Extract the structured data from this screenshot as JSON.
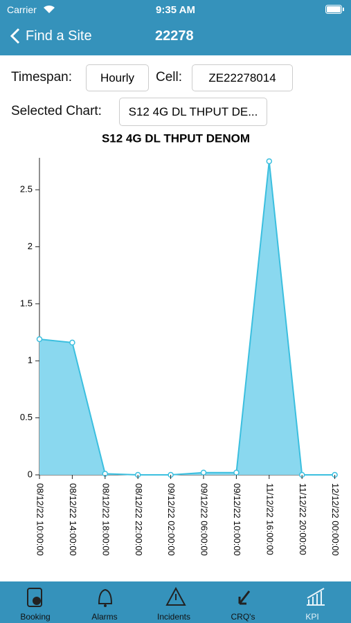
{
  "status": {
    "carrier": "Carrier",
    "time": "9:35 AM"
  },
  "header": {
    "back": "Find a Site",
    "title": "22278"
  },
  "controls": {
    "timespan_label": "Timespan:",
    "timespan": "Hourly",
    "cell_label": "Cell:",
    "cell": "ZE22278014",
    "chart_label": "Selected Chart:",
    "chart": "S12 4G DL THPUT DE..."
  },
  "chart_data": {
    "type": "area",
    "title": "S12 4G DL THPUT DENOM",
    "categories": [
      "08/12/22 10:00:00",
      "08/12/22 14:00:00",
      "08/12/22 18:00:00",
      "08/12/22 22:00:00",
      "09/12/22 02:00:00",
      "09/12/22 06:00:00",
      "09/12/22 10:00:00",
      "11/12/22 16:00:00",
      "11/12/22 20:00:00",
      "12/12/22 00:00:00"
    ],
    "values": [
      1.19,
      1.16,
      0.01,
      0,
      0,
      0.02,
      0.02,
      2.75,
      0,
      0
    ],
    "color": "#3bbfdf",
    "fill": "#8ad8ef",
    "ylim": [
      0,
      2.78
    ],
    "yticks": [
      0,
      0.5,
      1,
      1.5,
      2,
      2.5
    ]
  },
  "tabs": [
    "Booking",
    "Alarms",
    "Incidents",
    "CRQ's",
    "KPI"
  ]
}
